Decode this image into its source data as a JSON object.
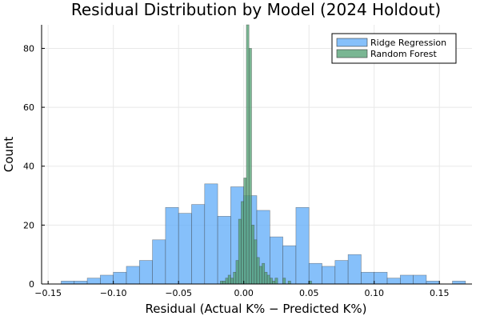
{
  "chart_data": {
    "type": "bar",
    "title": "Residual Distribution by Model (2024 Holdout)",
    "xlabel": "Residual (Actual K% − Predicted K%)",
    "ylabel": "Count",
    "xlim": [
      -0.155,
      0.175
    ],
    "ylim": [
      0,
      88
    ],
    "xticks": [
      -0.15,
      -0.1,
      -0.05,
      0.0,
      0.05,
      0.1,
      0.15
    ],
    "xtick_labels": [
      "−0.15",
      "−0.10",
      "−0.05",
      "0.00",
      "0.05",
      "0.10",
      "0.15"
    ],
    "yticks": [
      0,
      20,
      40,
      60,
      80
    ],
    "ytick_labels": [
      "0",
      "20",
      "40",
      "60",
      "80"
    ],
    "grid": true,
    "legend_position": "top-right",
    "series": [
      {
        "name": "Ridge Regression",
        "color": "#64aef8",
        "bin_width": 0.01,
        "bin_starts": [
          -0.14,
          -0.13,
          -0.12,
          -0.11,
          -0.1,
          -0.09,
          -0.08,
          -0.07,
          -0.06,
          -0.05,
          -0.04,
          -0.03,
          -0.02,
          -0.01,
          0.0,
          0.01,
          0.02,
          0.03,
          0.04,
          0.05,
          0.06,
          0.07,
          0.08,
          0.09,
          0.1,
          0.11,
          0.12,
          0.13,
          0.14,
          0.15,
          0.16
        ],
        "counts": [
          1,
          1,
          2,
          3,
          4,
          6,
          8,
          15,
          26,
          24,
          27,
          34,
          23,
          33,
          30,
          25,
          16,
          13,
          26,
          7,
          6,
          8,
          10,
          4,
          4,
          2,
          3,
          3,
          1,
          0,
          1
        ]
      },
      {
        "name": "Random Forest",
        "color": "#54a274",
        "bin_width": 0.002,
        "bin_starts": [
          -0.018,
          -0.016,
          -0.014,
          -0.012,
          -0.01,
          -0.008,
          -0.006,
          -0.004,
          -0.002,
          0.0,
          0.002,
          0.004,
          0.006,
          0.008,
          0.01,
          0.012,
          0.014,
          0.016,
          0.018,
          0.02,
          0.022,
          0.024,
          0.026,
          0.028,
          0.03,
          0.032,
          0.034,
          0.036,
          0.038,
          0.04,
          0.042,
          0.044,
          0.046,
          0.048,
          0.05
        ],
        "counts": [
          1,
          1,
          2,
          3,
          2,
          4,
          8,
          22,
          28,
          36,
          100,
          80,
          20,
          15,
          9,
          6,
          7,
          4,
          3,
          2,
          1,
          2,
          0,
          0,
          2,
          0,
          1,
          0,
          0,
          0,
          0,
          0,
          0,
          0,
          1
        ]
      }
    ]
  }
}
